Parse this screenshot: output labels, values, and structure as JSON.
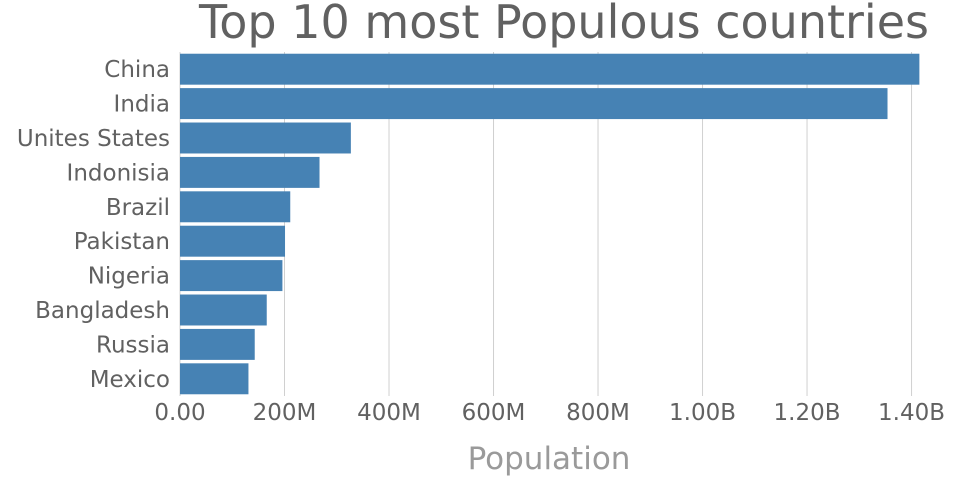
{
  "chart_data": {
    "type": "bar",
    "orientation": "horizontal",
    "title": "Top 10 most Populous countries",
    "xlabel": "Population",
    "ylabel": "",
    "categories": [
      "China",
      "India",
      "Unites States",
      "Indonisia",
      "Brazil",
      "Pakistan",
      "Nigeria",
      "Bangladesh",
      "Russia",
      "Mexico"
    ],
    "values": [
      1415000000,
      1354000000,
      327000000,
      267000000,
      211000000,
      201000000,
      196000000,
      166000000,
      143000000,
      131000000
    ],
    "xlim": [
      0,
      1420000000
    ],
    "x_ticks": [
      0,
      200000000,
      400000000,
      600000000,
      800000000,
      1000000000,
      1200000000,
      1400000000
    ],
    "x_tick_labels": [
      "0.00",
      "200M",
      "400M",
      "600M",
      "800M",
      "1.00B",
      "1.20B",
      "1.40B"
    ],
    "grid": "vertical",
    "legend": "none",
    "bar_color": "#4682b4"
  }
}
